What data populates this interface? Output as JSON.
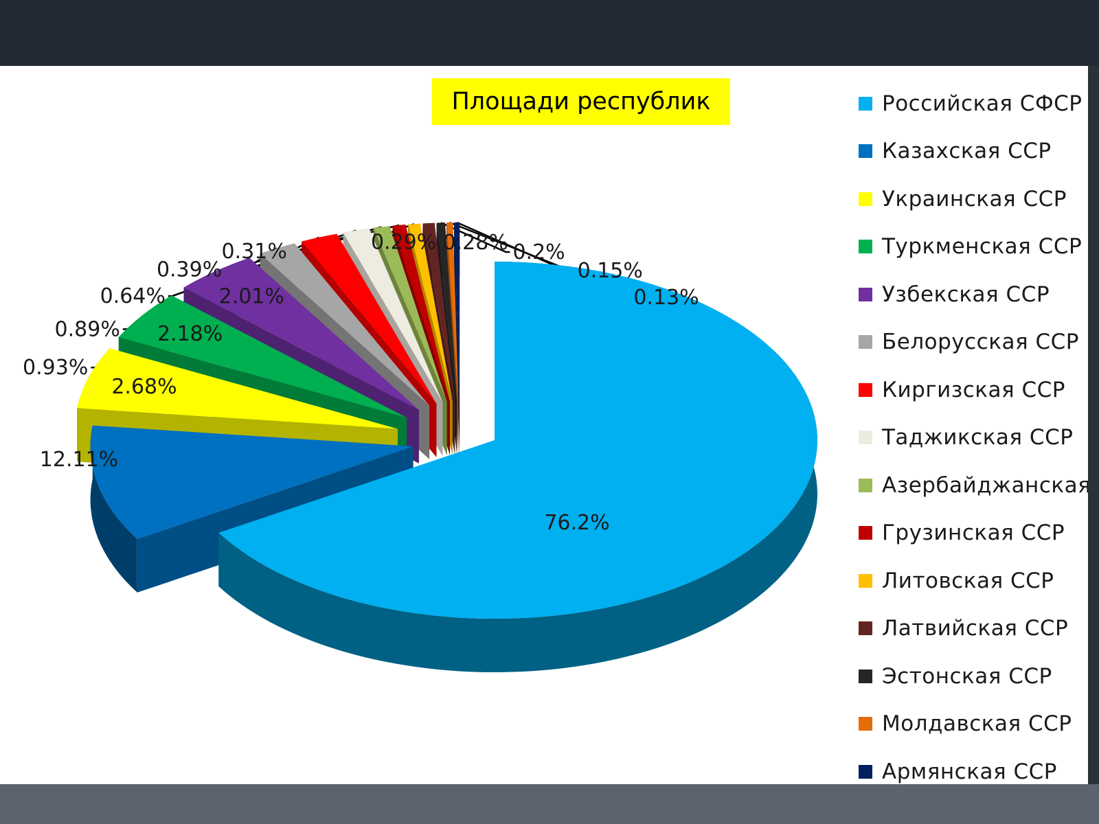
{
  "chart_data": {
    "type": "pie",
    "title": "Площади республик",
    "style": "3d-exploded",
    "legend_position": "right",
    "slices": [
      {
        "label": "Российская СФСР",
        "value": 76.2,
        "value_label": "76.2%",
        "color": "#00b0f0"
      },
      {
        "label": "Казахская ССР",
        "value": 12.11,
        "value_label": "12.11%",
        "color": "#0070c0"
      },
      {
        "label": "Украинская ССР",
        "value": 2.68,
        "value_label": "2.68%",
        "color": "#ffff00"
      },
      {
        "label": "Туркменская ССР",
        "value": 2.18,
        "value_label": "2.18%",
        "color": "#00b050"
      },
      {
        "label": "Узбекская ССР",
        "value": 2.01,
        "value_label": "2.01%",
        "color": "#7030a0"
      },
      {
        "label": "Белорусская ССР",
        "value": 0.93,
        "value_label": "0.93%",
        "color": "#a6a6a6"
      },
      {
        "label": "Киргизская ССР",
        "value": 0.89,
        "value_label": "0.89%",
        "color": "#ff0000"
      },
      {
        "label": "Таджикская ССР",
        "value": 0.64,
        "value_label": "0.64%",
        "color": "#eeece1"
      },
      {
        "label": "Азербайджанская ССР",
        "value": 0.39,
        "value_label": "0.39%",
        "color": "#9bbb59"
      },
      {
        "label": "Грузинская ССР",
        "value": 0.31,
        "value_label": "0.31%",
        "color": "#c00000"
      },
      {
        "label": "Литовская ССР",
        "value": 0.29,
        "value_label": "0.29%",
        "color": "#ffc000"
      },
      {
        "label": "Латвийская ССР",
        "value": 0.28,
        "value_label": "0.28%",
        "color": "#632523"
      },
      {
        "label": "Эстонская ССР",
        "value": 0.2,
        "value_label": "0.2%",
        "color": "#262626"
      },
      {
        "label": "Молдавская ССР",
        "value": 0.15,
        "value_label": "0.15%",
        "color": "#e46c0a"
      },
      {
        "label": "Армянская ССР",
        "value": 0.13,
        "value_label": "0.13%",
        "color": "#002060"
      }
    ]
  }
}
